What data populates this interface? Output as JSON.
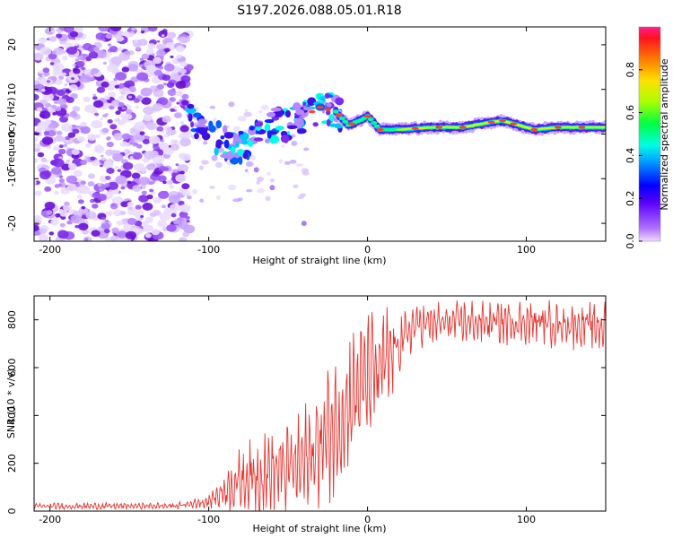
{
  "title": "S197.2026.088.05.01.R18",
  "chart_data": [
    {
      "type": "heatmap",
      "name": "spectrogram",
      "xlabel": "Height of straight line (km)",
      "ylabel": "Frequency (Hz)",
      "xlim": [
        -210,
        150
      ],
      "ylim": [
        -24,
        24
      ],
      "xticks": [
        -200,
        -100,
        0,
        100
      ],
      "yticks": [
        -20,
        -10,
        0,
        10,
        20
      ],
      "colorbar": {
        "label": "Normalized spectral amplitude",
        "range": [
          0,
          1
        ],
        "ticks": [
          0.0,
          0.2,
          0.4,
          0.6,
          0.8
        ]
      },
      "ridge": [
        {
          "x": -112,
          "f": 4
        },
        {
          "x": -100,
          "f": 1
        },
        {
          "x": -90,
          "f": -2
        },
        {
          "x": -80,
          "f": -3
        },
        {
          "x": -70,
          "f": 0
        },
        {
          "x": -60,
          "f": 2
        },
        {
          "x": -50,
          "f": 2
        },
        {
          "x": -40,
          "f": 4
        },
        {
          "x": -30,
          "f": 6
        },
        {
          "x": -20,
          "f": 5
        },
        {
          "x": -12,
          "f": 2
        },
        {
          "x": -5,
          "f": 3
        },
        {
          "x": 0,
          "f": 4
        },
        {
          "x": 8,
          "f": 1
        },
        {
          "x": 20,
          "f": 1
        },
        {
          "x": 40,
          "f": 1.5
        },
        {
          "x": 60,
          "f": 1.5
        },
        {
          "x": 75,
          "f": 2.5
        },
        {
          "x": 85,
          "f": 3
        },
        {
          "x": 95,
          "f": 2
        },
        {
          "x": 105,
          "f": 1
        },
        {
          "x": 120,
          "f": 1.5
        },
        {
          "x": 150,
          "f": 1.5
        }
      ]
    },
    {
      "type": "line",
      "name": "snr",
      "xlabel": "Height of straight line (km)",
      "ylabel": "SNR (10 * v/v)",
      "xlim": [
        -210,
        150
      ],
      "ylim": [
        0,
        900
      ],
      "xticks": [
        -200,
        -100,
        0,
        100
      ],
      "yticks": [
        0,
        200,
        400,
        600,
        800
      ],
      "color": "#e8332e",
      "envelope": [
        {
          "x": -210,
          "mean": 20,
          "spread": 15
        },
        {
          "x": -120,
          "mean": 22,
          "spread": 15
        },
        {
          "x": -100,
          "mean": 40,
          "spread": 30
        },
        {
          "x": -85,
          "mean": 110,
          "spread": 120
        },
        {
          "x": -70,
          "mean": 150,
          "spread": 200
        },
        {
          "x": -55,
          "mean": 170,
          "spread": 200
        },
        {
          "x": -40,
          "mean": 200,
          "spread": 250
        },
        {
          "x": -30,
          "mean": 280,
          "spread": 300
        },
        {
          "x": -20,
          "mean": 360,
          "spread": 320
        },
        {
          "x": -10,
          "mean": 470,
          "spread": 300
        },
        {
          "x": 0,
          "mean": 560,
          "spread": 280
        },
        {
          "x": 10,
          "mean": 600,
          "spread": 280
        },
        {
          "x": 20,
          "mean": 700,
          "spread": 150
        },
        {
          "x": 30,
          "mean": 780,
          "spread": 100
        },
        {
          "x": 60,
          "mean": 790,
          "spread": 100
        },
        {
          "x": 100,
          "mean": 790,
          "spread": 100
        },
        {
          "x": 130,
          "mean": 780,
          "spread": 110
        },
        {
          "x": 150,
          "mean": 770,
          "spread": 110
        }
      ]
    }
  ]
}
